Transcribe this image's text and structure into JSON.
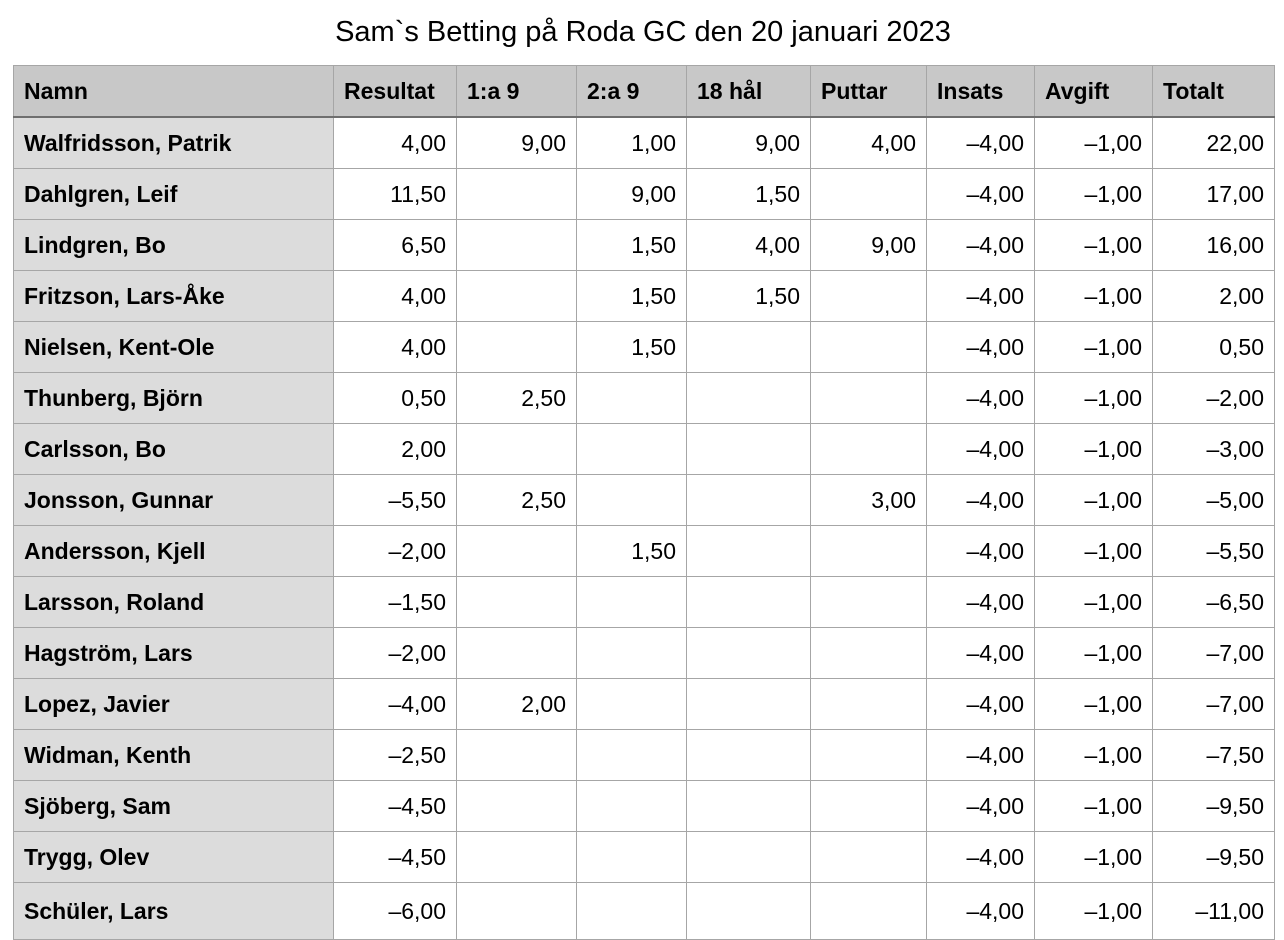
{
  "title": "Sam`s Betting på Roda GC den 20 januari 2023",
  "columns": [
    "Namn",
    "Resultat",
    "1:a 9",
    "2:a 9",
    "18 hål",
    "Puttar",
    "Insats",
    "Avgift",
    "Totalt"
  ],
  "rows": [
    [
      "Walfridsson, Patrik",
      "4,00",
      "9,00",
      "1,00",
      "9,00",
      "4,00",
      "–4,00",
      "–1,00",
      "22,00"
    ],
    [
      "Dahlgren, Leif",
      "11,50",
      "",
      "9,00",
      "1,50",
      "",
      "–4,00",
      "–1,00",
      "17,00"
    ],
    [
      "Lindgren, Bo",
      "6,50",
      "",
      "1,50",
      "4,00",
      "9,00",
      "–4,00",
      "–1,00",
      "16,00"
    ],
    [
      "Fritzson, Lars-Åke",
      "4,00",
      "",
      "1,50",
      "1,50",
      "",
      "–4,00",
      "–1,00",
      "2,00"
    ],
    [
      "Nielsen, Kent-Ole",
      "4,00",
      "",
      "1,50",
      "",
      "",
      "–4,00",
      "–1,00",
      "0,50"
    ],
    [
      "Thunberg, Björn",
      "0,50",
      "2,50",
      "",
      "",
      "",
      "–4,00",
      "–1,00",
      "–2,00"
    ],
    [
      "Carlsson, Bo",
      "2,00",
      "",
      "",
      "",
      "",
      "–4,00",
      "–1,00",
      "–3,00"
    ],
    [
      "Jonsson, Gunnar",
      "–5,50",
      "2,50",
      "",
      "",
      "3,00",
      "–4,00",
      "–1,00",
      "–5,00"
    ],
    [
      "Andersson, Kjell",
      "–2,00",
      "",
      "1,50",
      "",
      "",
      "–4,00",
      "–1,00",
      "–5,50"
    ],
    [
      "Larsson, Roland",
      "–1,50",
      "",
      "",
      "",
      "",
      "–4,00",
      "–1,00",
      "–6,50"
    ],
    [
      "Hagström, Lars",
      "–2,00",
      "",
      "",
      "",
      "",
      "–4,00",
      "–1,00",
      "–7,00"
    ],
    [
      "Lopez, Javier",
      "–4,00",
      "2,00",
      "",
      "",
      "",
      "–4,00",
      "–1,00",
      "–7,00"
    ],
    [
      "Widman, Kenth",
      "–2,50",
      "",
      "",
      "",
      "",
      "–4,00",
      "–1,00",
      "–7,50"
    ],
    [
      "Sjöberg, Sam",
      "–4,50",
      "",
      "",
      "",
      "",
      "–4,00",
      "–1,00",
      "–9,50"
    ],
    [
      "Trygg, Olev",
      "–4,50",
      "",
      "",
      "",
      "",
      "–4,00",
      "–1,00",
      "–9,50"
    ],
    [
      "Schüler, Lars",
      "–6,00",
      "",
      "",
      "",
      "",
      "–4,00",
      "–1,00",
      "–11,00"
    ]
  ]
}
